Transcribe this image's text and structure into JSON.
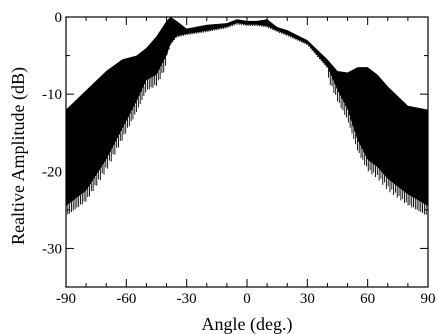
{
  "chart_data": {
    "type": "area",
    "xlabel": "Angle (deg.)",
    "ylabel": "Realtive Amplitude (dB)",
    "xlim": [
      -90,
      90
    ],
    "ylim": [
      -35,
      0
    ],
    "xticks": [
      -90,
      -60,
      -30,
      0,
      30,
      60,
      90
    ],
    "yticks": [
      0,
      -10,
      -20,
      -30
    ],
    "xtick_labels": [
      "-90",
      "-60",
      "-30",
      "0",
      "30",
      "60",
      "90"
    ],
    "ytick_labels": [
      "0",
      "-10",
      "-20",
      "-30"
    ],
    "grid": false,
    "colors": {
      "fill": "#000000",
      "axes": "#000000",
      "background": "#ffffff"
    },
    "series": [
      {
        "band": true,
        "x": [
          -90,
          -80,
          -70,
          -62,
          -55,
          -50,
          -45,
          -40,
          -38,
          -35,
          -30,
          -20,
          -10,
          -5,
          0,
          5,
          10,
          15,
          20,
          30,
          40,
          45,
          50,
          55,
          60,
          65,
          70,
          80,
          90
        ],
        "upper": [
          -12,
          -9.5,
          -7,
          -5.5,
          -5,
          -4,
          -2.5,
          -0.5,
          0,
          -0.5,
          -1.5,
          -1,
          -0.8,
          -0.3,
          -0.5,
          -0.5,
          -0.3,
          -1.3,
          -1.7,
          -3,
          -5.5,
          -7,
          -7.2,
          -6.5,
          -6.5,
          -7.5,
          -9,
          -11.5,
          -12
        ],
        "lower": [
          -24.5,
          -22.5,
          -18.5,
          -14.5,
          -11,
          -8.2,
          -7.5,
          -5,
          -3.5,
          -2.5,
          -2.2,
          -1.8,
          -1.3,
          -0.8,
          -1,
          -1,
          -1.2,
          -1.8,
          -2.3,
          -3.5,
          -6.5,
          -9.5,
          -12,
          -16,
          -18.5,
          -19.5,
          -21,
          -23,
          -24.5
        ]
      }
    ]
  }
}
